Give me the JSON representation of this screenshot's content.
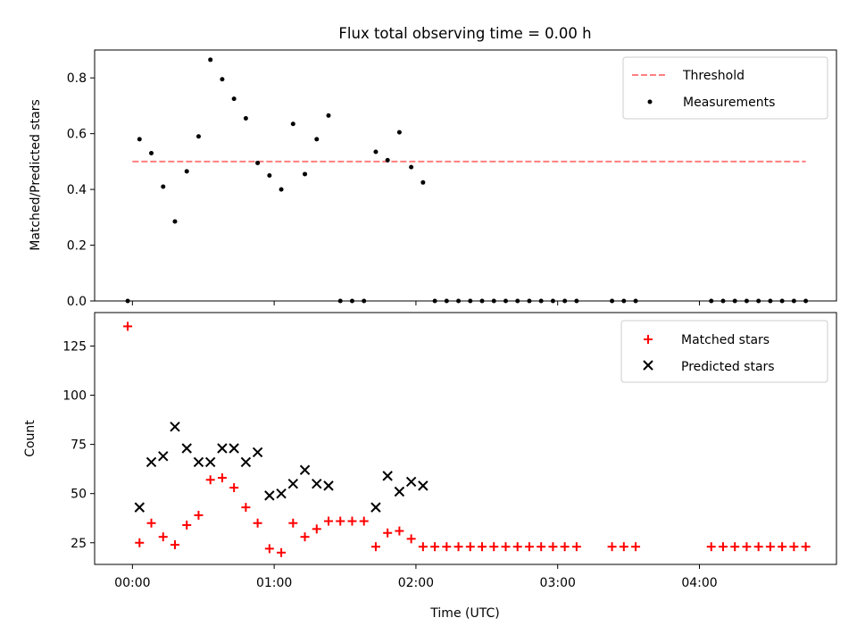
{
  "chart_data": [
    {
      "type": "scatter",
      "title": "Flux total observing time = 0.00 h",
      "ylabel": "Matched/Predicted stars",
      "xlabel": "",
      "xlim": [
        -16,
        298
      ],
      "ylim": [
        0,
        0.9
      ],
      "yticks": [
        0.0,
        0.2,
        0.4,
        0.6,
        0.8
      ],
      "ytick_labels": [
        "0.0",
        "0.2",
        "0.4",
        "0.6",
        "0.8"
      ],
      "xticks": [
        0,
        60,
        120,
        180,
        240
      ],
      "legend": {
        "position": "top-right",
        "entries": [
          "Threshold",
          "Measurements"
        ]
      },
      "threshold": {
        "name": "Threshold",
        "y": 0.5,
        "x_start": 0,
        "x_end": 285,
        "color": "#ff7f7f",
        "style": "dashed"
      },
      "series": [
        {
          "name": "Measurements",
          "color": "#000000",
          "marker": "dot",
          "points": [
            [
              -2,
              0.0
            ],
            [
              3,
              0.58
            ],
            [
              8,
              0.53
            ],
            [
              13,
              0.41
            ],
            [
              18,
              0.285
            ],
            [
              23,
              0.465
            ],
            [
              28,
              0.59
            ],
            [
              33,
              0.865
            ],
            [
              38,
              0.795
            ],
            [
              43,
              0.725
            ],
            [
              48,
              0.655
            ],
            [
              53,
              0.495
            ],
            [
              58,
              0.45
            ],
            [
              63,
              0.4
            ],
            [
              68,
              0.635
            ],
            [
              73,
              0.455
            ],
            [
              78,
              0.58
            ],
            [
              83,
              0.665
            ],
            [
              88,
              0.0
            ],
            [
              93,
              0.0
            ],
            [
              98,
              0.0
            ],
            [
              103,
              0.535
            ],
            [
              108,
              0.505
            ],
            [
              113,
              0.605
            ],
            [
              118,
              0.48
            ],
            [
              123,
              0.425
            ],
            [
              128,
              0.0
            ],
            [
              133,
              0.0
            ],
            [
              138,
              0.0
            ],
            [
              143,
              0.0
            ],
            [
              148,
              0.0
            ],
            [
              153,
              0.0
            ],
            [
              158,
              0.0
            ],
            [
              163,
              0.0
            ],
            [
              168,
              0.0
            ],
            [
              173,
              0.0
            ],
            [
              178,
              0.0
            ],
            [
              183,
              0.0
            ],
            [
              188,
              0.0
            ],
            [
              203,
              0.0
            ],
            [
              208,
              0.0
            ],
            [
              213,
              0.0
            ],
            [
              245,
              0.0
            ],
            [
              250,
              0.0
            ],
            [
              255,
              0.0
            ],
            [
              260,
              0.0
            ],
            [
              265,
              0.0
            ],
            [
              270,
              0.0
            ],
            [
              275,
              0.0
            ],
            [
              280,
              0.0
            ],
            [
              285,
              0.0
            ]
          ]
        }
      ]
    },
    {
      "type": "scatter",
      "title": "",
      "ylabel": "Count",
      "xlabel": "Time (UTC)",
      "xlim": [
        -16,
        298
      ],
      "ylim": [
        14,
        142
      ],
      "yticks": [
        25,
        50,
        75,
        100,
        125
      ],
      "ytick_labels": [
        "25",
        "50",
        "75",
        "100",
        "125"
      ],
      "xticks": [
        0,
        60,
        120,
        180,
        240
      ],
      "xtick_labels": [
        "00:00",
        "01:00",
        "02:00",
        "03:00",
        "04:00"
      ],
      "legend": {
        "position": "top-right",
        "entries": [
          "Matched stars",
          "Predicted stars"
        ]
      },
      "series": [
        {
          "name": "Matched stars",
          "color": "#ff0000",
          "marker": "plus",
          "points": [
            [
              -2,
              135
            ],
            [
              3,
              25
            ],
            [
              8,
              35
            ],
            [
              13,
              28
            ],
            [
              18,
              24
            ],
            [
              23,
              34
            ],
            [
              28,
              39
            ],
            [
              33,
              57
            ],
            [
              38,
              58
            ],
            [
              43,
              53
            ],
            [
              48,
              43
            ],
            [
              53,
              35
            ],
            [
              58,
              22
            ],
            [
              63,
              20
            ],
            [
              68,
              35
            ],
            [
              73,
              28
            ],
            [
              78,
              32
            ],
            [
              83,
              36
            ],
            [
              88,
              36
            ],
            [
              93,
              36
            ],
            [
              98,
              36
            ],
            [
              103,
              23
            ],
            [
              108,
              30
            ],
            [
              113,
              31
            ],
            [
              118,
              27
            ],
            [
              123,
              23
            ],
            [
              128,
              23
            ],
            [
              133,
              23
            ],
            [
              138,
              23
            ],
            [
              143,
              23
            ],
            [
              148,
              23
            ],
            [
              153,
              23
            ],
            [
              158,
              23
            ],
            [
              163,
              23
            ],
            [
              168,
              23
            ],
            [
              173,
              23
            ],
            [
              178,
              23
            ],
            [
              183,
              23
            ],
            [
              188,
              23
            ],
            [
              203,
              23
            ],
            [
              208,
              23
            ],
            [
              213,
              23
            ],
            [
              245,
              23
            ],
            [
              250,
              23
            ],
            [
              255,
              23
            ],
            [
              260,
              23
            ],
            [
              265,
              23
            ],
            [
              270,
              23
            ],
            [
              275,
              23
            ],
            [
              280,
              23
            ],
            [
              285,
              23
            ]
          ]
        },
        {
          "name": "Predicted stars",
          "color": "#000000",
          "marker": "x",
          "points": [
            [
              3,
              43
            ],
            [
              8,
              66
            ],
            [
              13,
              69
            ],
            [
              18,
              84
            ],
            [
              23,
              73
            ],
            [
              28,
              66
            ],
            [
              33,
              66
            ],
            [
              38,
              73
            ],
            [
              43,
              73
            ],
            [
              48,
              66
            ],
            [
              53,
              71
            ],
            [
              58,
              49
            ],
            [
              63,
              50
            ],
            [
              68,
              55
            ],
            [
              73,
              62
            ],
            [
              78,
              55
            ],
            [
              83,
              54
            ],
            [
              103,
              43
            ],
            [
              108,
              59
            ],
            [
              113,
              51
            ],
            [
              118,
              56
            ],
            [
              123,
              54
            ]
          ]
        }
      ]
    }
  ]
}
